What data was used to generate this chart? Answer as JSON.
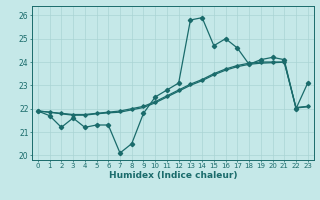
{
  "xlabel": "Humidex (Indice chaleur)",
  "background_color": "#c5e8e8",
  "grid_color": "#aad4d4",
  "line_color": "#1a6b6b",
  "xlim": [
    -0.5,
    23.5
  ],
  "ylim": [
    19.8,
    26.4
  ],
  "yticks": [
    20,
    21,
    22,
    23,
    24,
    25,
    26
  ],
  "xticks": [
    0,
    1,
    2,
    3,
    4,
    5,
    6,
    7,
    8,
    9,
    10,
    11,
    12,
    13,
    14,
    15,
    16,
    17,
    18,
    19,
    20,
    21,
    22,
    23
  ],
  "series1": [
    21.9,
    21.7,
    21.2,
    21.6,
    21.2,
    21.3,
    21.3,
    20.1,
    20.5,
    21.8,
    22.5,
    22.8,
    23.1,
    25.8,
    25.9,
    24.7,
    25.0,
    24.6,
    23.9,
    24.1,
    24.2,
    24.1,
    22.0,
    23.1
  ],
  "series2": [
    21.9,
    21.85,
    21.8,
    21.75,
    21.75,
    21.8,
    21.85,
    21.9,
    22.0,
    22.1,
    22.3,
    22.55,
    22.8,
    23.05,
    23.25,
    23.5,
    23.7,
    23.85,
    23.95,
    24.0,
    24.0,
    24.0,
    22.05,
    22.1
  ],
  "series3": [
    21.9,
    21.85,
    21.78,
    21.72,
    21.72,
    21.78,
    21.82,
    21.85,
    21.95,
    22.05,
    22.25,
    22.5,
    22.75,
    23.0,
    23.2,
    23.45,
    23.65,
    23.8,
    23.9,
    23.95,
    23.97,
    23.99,
    22.03,
    22.08
  ]
}
